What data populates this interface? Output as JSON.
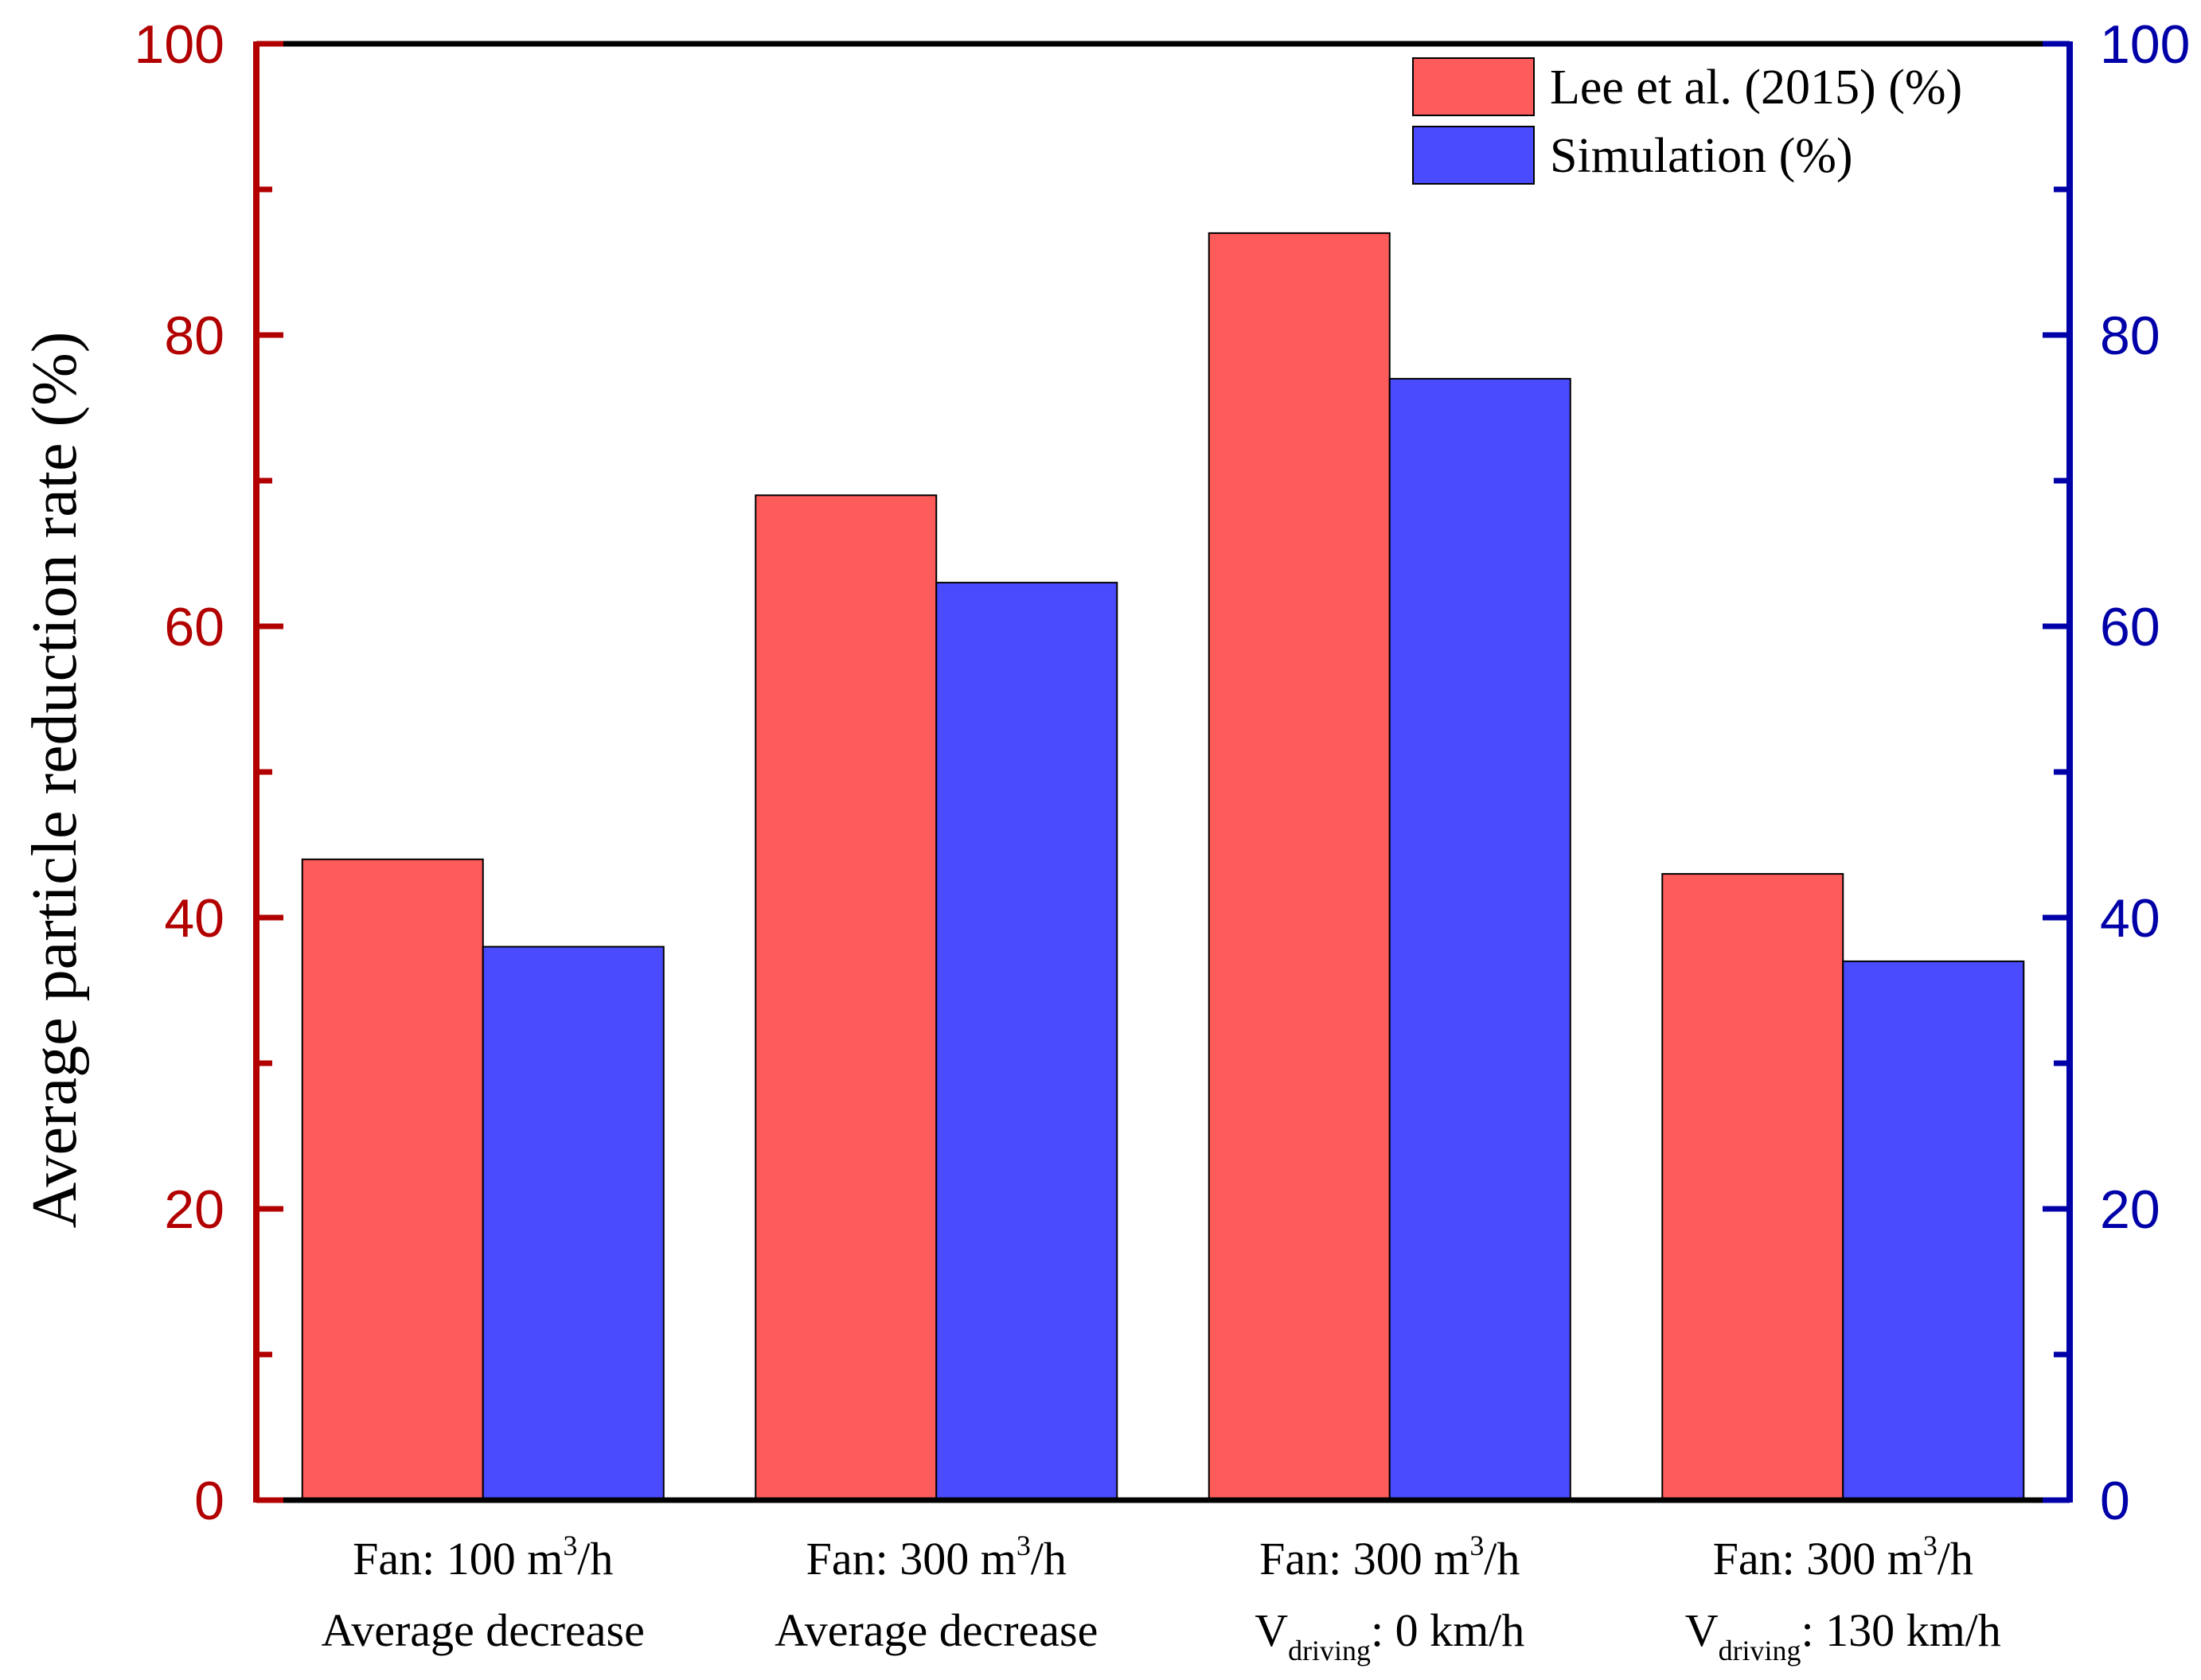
{
  "chart_data": {
    "type": "bar",
    "title": "",
    "ylabel": "Average particle reduction rate (%)",
    "ylim": [
      0,
      100
    ],
    "y2lim": [
      0,
      100
    ],
    "yticks": [
      "0",
      "20",
      "40",
      "60",
      "80",
      "100"
    ],
    "y2ticks": [
      "0",
      "20",
      "40",
      "60",
      "80",
      "100"
    ],
    "categories": [
      {
        "line1": "Fan: 100 m",
        "sup": "3",
        "line1_end": "/h",
        "line2": "Average decrease"
      },
      {
        "line1": "Fan: 300 m",
        "sup": "3",
        "line1_end": "/h",
        "line2": "Average decrease"
      },
      {
        "line1": "Fan: 300 m",
        "sup": "3",
        "line1_end": "/h",
        "line2_base": "V",
        "line2_sub": "driving",
        "line2_end": ": 0 km/h"
      },
      {
        "line1": "Fan: 300 m",
        "sup": "3",
        "line1_end": "/h",
        "line2_base": "V",
        "line2_sub": "driving",
        "line2_end": ": 130 km/h"
      }
    ],
    "series": [
      {
        "name": "Lee et al. (2015) (%)",
        "color": "#fe5b5b",
        "values": [
          44,
          69,
          87,
          43
        ]
      },
      {
        "name": "Simulation (%)",
        "color": "#4a4afe",
        "values": [
          38,
          63,
          77,
          37
        ]
      }
    ],
    "left_axis_color": "#b20000",
    "right_axis_color": "#0000a8",
    "legend_position": "top-right"
  }
}
